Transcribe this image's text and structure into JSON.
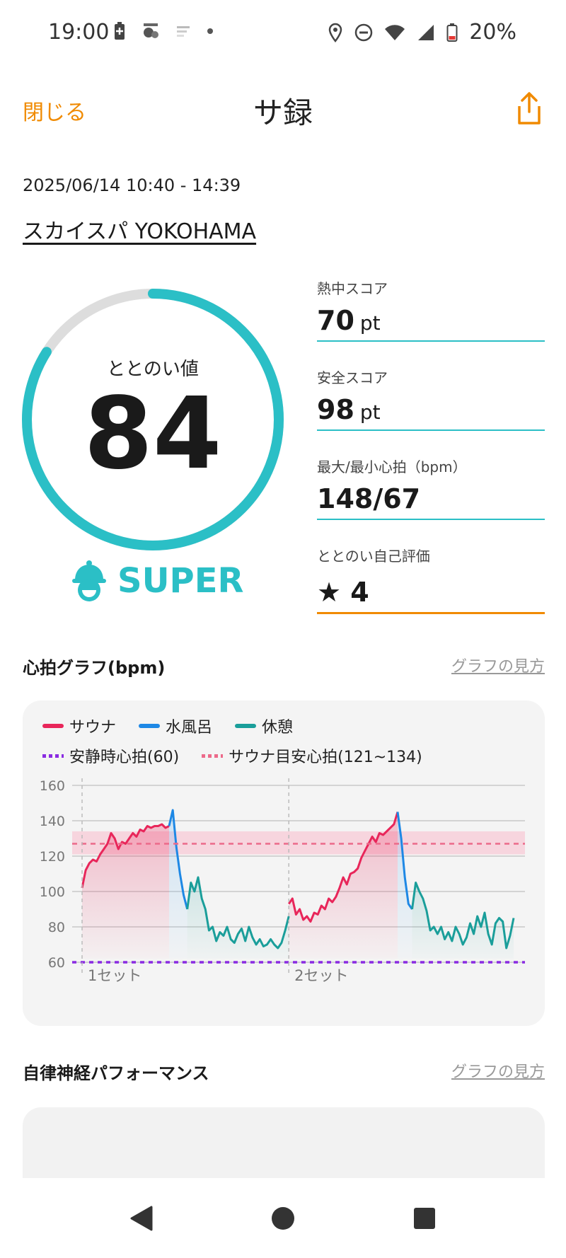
{
  "status_bar": {
    "time": "19:00",
    "battery": "20%"
  },
  "header": {
    "close_label": "閉じる",
    "title": "サ録"
  },
  "session": {
    "date": "2025/06/14 10:40 - 14:39",
    "facility": "スカイスパ YOKOHAMA"
  },
  "totonoi": {
    "label": "ととのい値",
    "value": "84",
    "progress": 0.84,
    "rank": "SUPER"
  },
  "stats": [
    {
      "label": "熱中スコア",
      "value": "70",
      "unit": "pt"
    },
    {
      "label": "安全スコア",
      "value": "98",
      "unit": "pt"
    },
    {
      "label": "最大/最小心拍（bpm）",
      "value": "148/67",
      "unit": ""
    },
    {
      "label": "ととのい自己評価",
      "value": "★ 4",
      "unit": ""
    }
  ],
  "hr_section": {
    "title": "心拍グラフ(bpm)",
    "link": "グラフの見方"
  },
  "legend": {
    "sauna": "サウナ",
    "water": "水風呂",
    "rest": "休憩",
    "resting": "安静時心拍(60)",
    "target": "サウナ目安心拍(121~134)"
  },
  "colors": {
    "sauna": "#e8265a",
    "water": "#1e88e5",
    "rest": "#1a9e9a",
    "resting": "#8a2be2",
    "target": "#e8265a",
    "accent": "#2bbfc6",
    "orange": "#f08a00"
  },
  "chart_data": {
    "type": "line",
    "ylim": [
      60,
      160
    ],
    "yticks": [
      60,
      80,
      100,
      120,
      140,
      160
    ],
    "resting_hr": 60,
    "target_band": [
      121,
      134
    ],
    "target_line": 127,
    "set_labels": [
      "1セット",
      "2セット"
    ],
    "series": [
      {
        "name": "サウナ",
        "phase": "sauna",
        "values": [
          102,
          112,
          116,
          118,
          117,
          121,
          124,
          127,
          133,
          130,
          124,
          128,
          127,
          130,
          133,
          131,
          135,
          134,
          137,
          136,
          137,
          137,
          138,
          136,
          137
        ]
      },
      {
        "name": "水風呂",
        "phase": "water",
        "values": [
          137,
          146,
          125,
          110,
          98,
          90
        ]
      },
      {
        "name": "休憩",
        "phase": "rest",
        "values": [
          90,
          105,
          100,
          108,
          96,
          90,
          78,
          80,
          72,
          77,
          75,
          80,
          73,
          71,
          76,
          79,
          72,
          80,
          74,
          70,
          73,
          69,
          70,
          73,
          70,
          68,
          71,
          78,
          86
        ]
      },
      {
        "name": "サウナ",
        "phase": "sauna",
        "values": [
          93,
          96,
          87,
          90,
          84,
          86,
          83,
          88,
          87,
          92,
          90,
          96,
          94,
          97,
          102,
          108,
          104,
          110,
          111,
          113,
          119,
          123,
          127,
          131,
          128,
          133,
          132,
          134,
          136,
          138,
          145
        ]
      },
      {
        "name": "水風呂",
        "phase": "water",
        "values": [
          145,
          130,
          108,
          93,
          90
        ]
      },
      {
        "name": "休憩",
        "phase": "rest",
        "values": [
          90,
          105,
          100,
          96,
          89,
          78,
          80,
          76,
          80,
          73,
          77,
          72,
          80,
          76,
          70,
          74,
          82,
          76,
          86,
          80,
          88,
          76,
          70,
          82,
          85,
          83,
          68,
          75,
          85
        ]
      }
    ]
  },
  "ans_section": {
    "title": "自律神経パフォーマンス",
    "link": "グラフの見方"
  }
}
